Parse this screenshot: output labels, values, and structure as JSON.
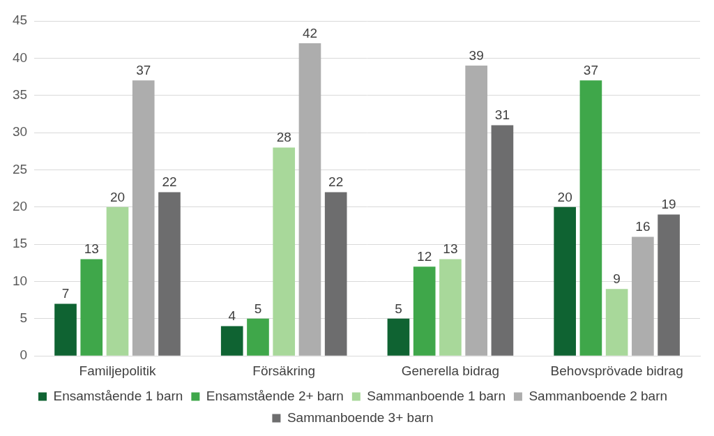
{
  "chart_data": {
    "type": "bar",
    "categories": [
      "Familjepolitik",
      "Försäkring",
      "Generella bidrag",
      "Behovsprövade bidrag"
    ],
    "series": [
      {
        "name": "Ensamstående 1 barn",
        "color": "#0f6332",
        "values": [
          7,
          4,
          5,
          20
        ]
      },
      {
        "name": "Ensamstående 2+ barn",
        "color": "#3fa74a",
        "values": [
          13,
          5,
          12,
          37
        ]
      },
      {
        "name": "Sammanboende 1 barn",
        "color": "#a8d89a",
        "values": [
          20,
          28,
          13,
          9
        ]
      },
      {
        "name": "Sammanboende 2 barn",
        "color": "#adadad",
        "values": [
          37,
          42,
          39,
          16
        ]
      },
      {
        "name": "Sammanboende 3+ barn",
        "color": "#6d6d6e",
        "values": [
          22,
          22,
          31,
          19
        ]
      }
    ],
    "ylim": [
      0,
      45
    ],
    "yticks": [
      0,
      5,
      10,
      15,
      20,
      25,
      30,
      35,
      40,
      45
    ],
    "grid": true,
    "legend": "bottom",
    "data_labels": true
  }
}
